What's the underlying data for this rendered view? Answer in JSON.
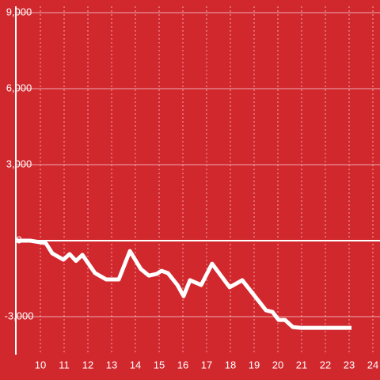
{
  "chart_data": {
    "type": "line",
    "x": [
      9.0,
      9.57,
      10.23,
      10.5,
      10.97,
      11.23,
      11.5,
      11.77,
      12.3,
      12.77,
      13.3,
      13.77,
      14.23,
      14.57,
      14.9,
      15.1,
      15.37,
      15.77,
      16.03,
      16.3,
      16.77,
      17.23,
      17.97,
      18.5,
      19.5,
      19.77,
      20.03,
      20.3,
      20.63,
      20.97,
      23.1
    ],
    "series": [
      {
        "color": "#ffffff",
        "values": [
          0,
          0,
          -100,
          -500,
          -750,
          -530,
          -800,
          -560,
          -1280,
          -1530,
          -1530,
          -410,
          -1120,
          -1380,
          -1310,
          -1190,
          -1280,
          -1750,
          -2190,
          -1560,
          -1750,
          -910,
          -1840,
          -1560,
          -2750,
          -2810,
          -3130,
          -3130,
          -3410,
          -3440,
          -3440
        ]
      }
    ],
    "xlim": [
      9,
      24.3
    ],
    "xticks": [
      10,
      11,
      12,
      13,
      14,
      15,
      16,
      17,
      18,
      19,
      20,
      21,
      22,
      23,
      24
    ],
    "ylim": [
      -4500,
      9000
    ],
    "yticks": [
      {
        "value": 9000,
        "label": "9,000"
      },
      {
        "value": 6000,
        "label": "6,000"
      },
      {
        "value": 3000,
        "label": "3,000"
      },
      0,
      {
        "value": -3000,
        "label": "-3,000"
      }
    ],
    "grid": true,
    "background": "#d1282e"
  }
}
